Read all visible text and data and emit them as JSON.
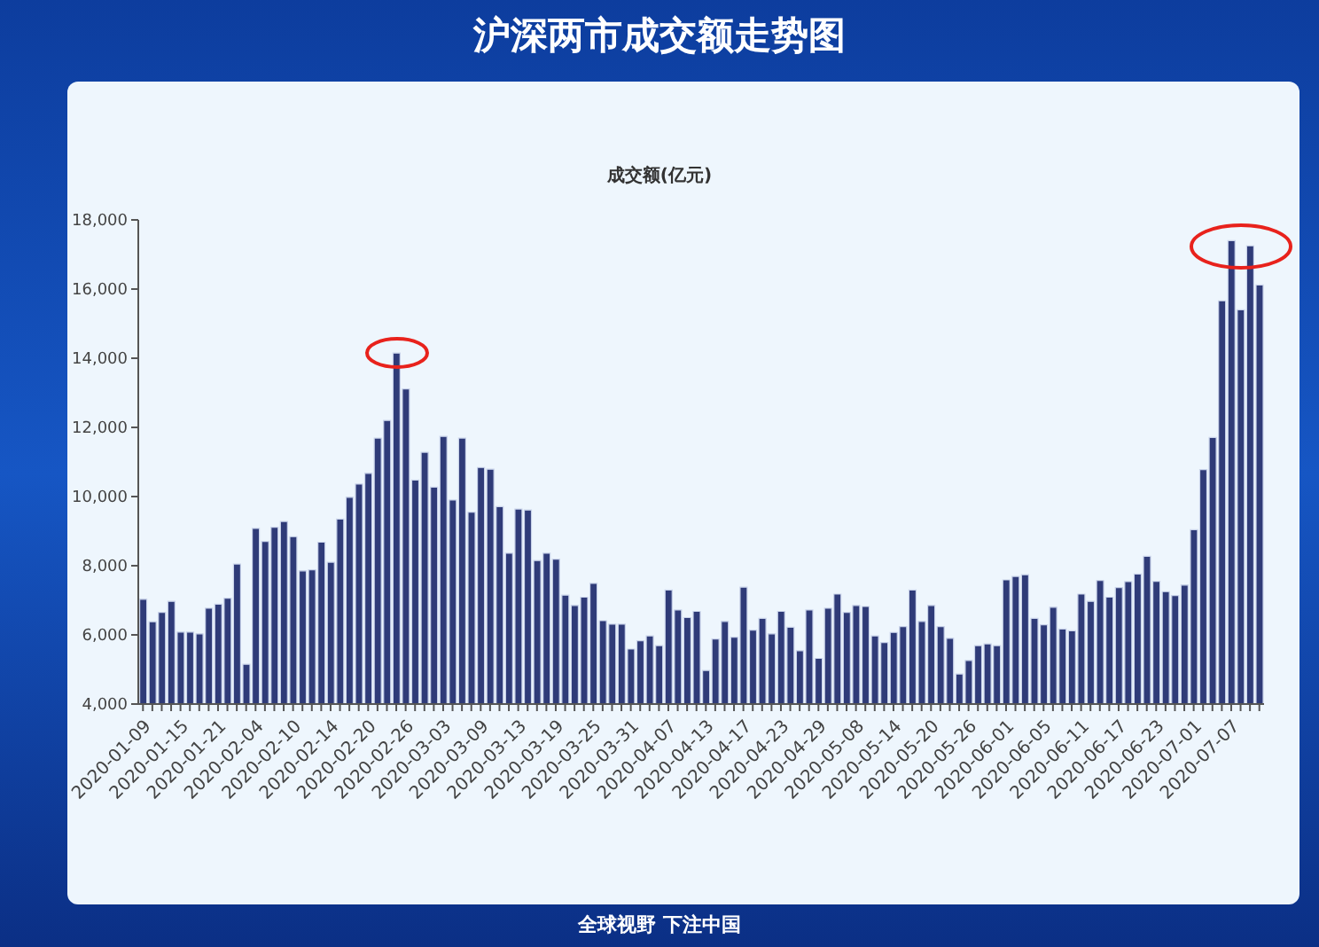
{
  "chart_data": {
    "type": "bar",
    "title": "沪深两市成交额走势图",
    "ylabel": "成交额(亿元)",
    "categories": [
      "2020-01-09",
      null,
      null,
      null,
      "2020-01-15",
      null,
      null,
      null,
      "2020-01-21",
      null,
      null,
      null,
      "2020-02-04",
      null,
      null,
      null,
      "2020-02-10",
      null,
      null,
      null,
      "2020-02-14",
      null,
      null,
      null,
      "2020-02-20",
      null,
      null,
      null,
      "2020-02-26",
      null,
      null,
      null,
      "2020-03-03",
      null,
      null,
      null,
      "2020-03-09",
      null,
      null,
      null,
      "2020-03-13",
      null,
      null,
      null,
      "2020-03-19",
      null,
      null,
      null,
      "2020-03-25",
      null,
      null,
      null,
      "2020-03-31",
      null,
      null,
      null,
      "2020-04-07",
      null,
      null,
      null,
      "2020-04-13",
      null,
      null,
      null,
      "2020-04-17",
      null,
      null,
      null,
      "2020-04-23",
      null,
      null,
      null,
      "2020-04-29",
      null,
      null,
      null,
      "2020-05-08",
      null,
      null,
      null,
      "2020-05-14",
      null,
      null,
      null,
      "2020-05-20",
      null,
      null,
      null,
      "2020-05-26",
      null,
      null,
      null,
      "2020-06-01",
      null,
      null,
      null,
      "2020-06-05",
      null,
      null,
      null,
      "2020-06-11",
      null,
      null,
      null,
      "2020-06-17",
      null,
      null,
      null,
      "2020-06-23",
      null,
      null,
      null,
      "2020-07-01",
      null,
      null,
      null,
      "2020-07-07",
      null,
      null,
      null
    ],
    "values": [
      7030,
      6380,
      6650,
      6970,
      6080,
      6080,
      6030,
      6770,
      6890,
      7060,
      8050,
      5150,
      9080,
      8700,
      9110,
      9280,
      8840,
      7850,
      7880,
      8680,
      8100,
      9350,
      9980,
      10360,
      10670,
      11690,
      12200,
      14150,
      13110,
      10480,
      11280,
      10270,
      11740,
      9900,
      11690,
      9550,
      10840,
      10790,
      9710,
      8360,
      9640,
      9610,
      8150,
      8360,
      8190,
      7150,
      6850,
      7090,
      7490,
      6410,
      6310,
      6310,
      5590,
      5830,
      5970,
      5690,
      7300,
      6720,
      6500,
      6680,
      4970,
      5880,
      6390,
      5930,
      7380,
      6140,
      6480,
      6030,
      6680,
      6220,
      5540,
      6720,
      5320,
      6770,
      7180,
      6650,
      6850,
      6820,
      5970,
      5780,
      6070,
      6240,
      7300,
      6390,
      6850,
      6240,
      5900,
      4870,
      5260,
      5690,
      5740,
      5690,
      7590,
      7690,
      7740,
      6480,
      6290,
      6800,
      6170,
      6120,
      7180,
      6970,
      7570,
      7090,
      7370,
      7540,
      7760,
      8270,
      7550,
      7250,
      7140,
      7440,
      9040,
      10780,
      11710,
      15660,
      17400,
      15400,
      17250,
      16120
    ],
    "color": "#2f3b78",
    "ylim": [
      4000,
      18000
    ],
    "yticks": [
      {
        "value": 4000,
        "label": "4,000"
      },
      {
        "value": 6000,
        "label": "6,000"
      },
      {
        "value": 8000,
        "label": "8,000"
      },
      {
        "value": 10000,
        "label": "10,000"
      },
      {
        "value": 12000,
        "label": "12,000"
      },
      {
        "value": 14000,
        "label": "14,000"
      },
      {
        "value": 16000,
        "label": "16,000"
      },
      {
        "value": 18000,
        "label": "18,000"
      }
    ],
    "annotations": [
      "全球视野 下注中国"
    ]
  }
}
